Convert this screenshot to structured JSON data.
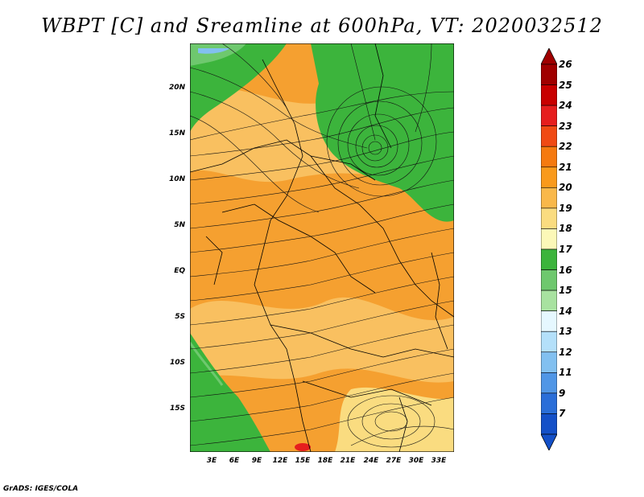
{
  "title": "WBPT [C] and Sreamline at 600hPa, VT: 2020032512",
  "credit": "GrADS: IGES/COLA",
  "lat_labels": [
    "20N",
    "15N",
    "10N",
    "5N",
    "EQ",
    "5S",
    "10S",
    "15S"
  ],
  "lon_labels": [
    "3E",
    "6E",
    "9E",
    "12E",
    "15E",
    "18E",
    "21E",
    "24E",
    "27E",
    "30E",
    "33E"
  ],
  "colorbar": {
    "labels": [
      "26",
      "25",
      "24",
      "23",
      "22",
      "21",
      "20",
      "19",
      "18",
      "17",
      "16",
      "15",
      "14",
      "13",
      "12",
      "11",
      "9",
      "7"
    ],
    "colors": [
      "#a00000",
      "#c80000",
      "#e61e1e",
      "#f04a14",
      "#f57a10",
      "#f99a1c",
      "#f9b84a",
      "#fadc80",
      "#fcf8b8",
      "#3cb43c",
      "#6ec86e",
      "#a8e2a0",
      "#e6f8ff",
      "#b4e0fa",
      "#82c0f0",
      "#5096e6",
      "#2a6ed8",
      "#1450c8"
    ],
    "arrow_top_color": "#a00000",
    "arrow_bottom_color": "#1450c8"
  }
}
